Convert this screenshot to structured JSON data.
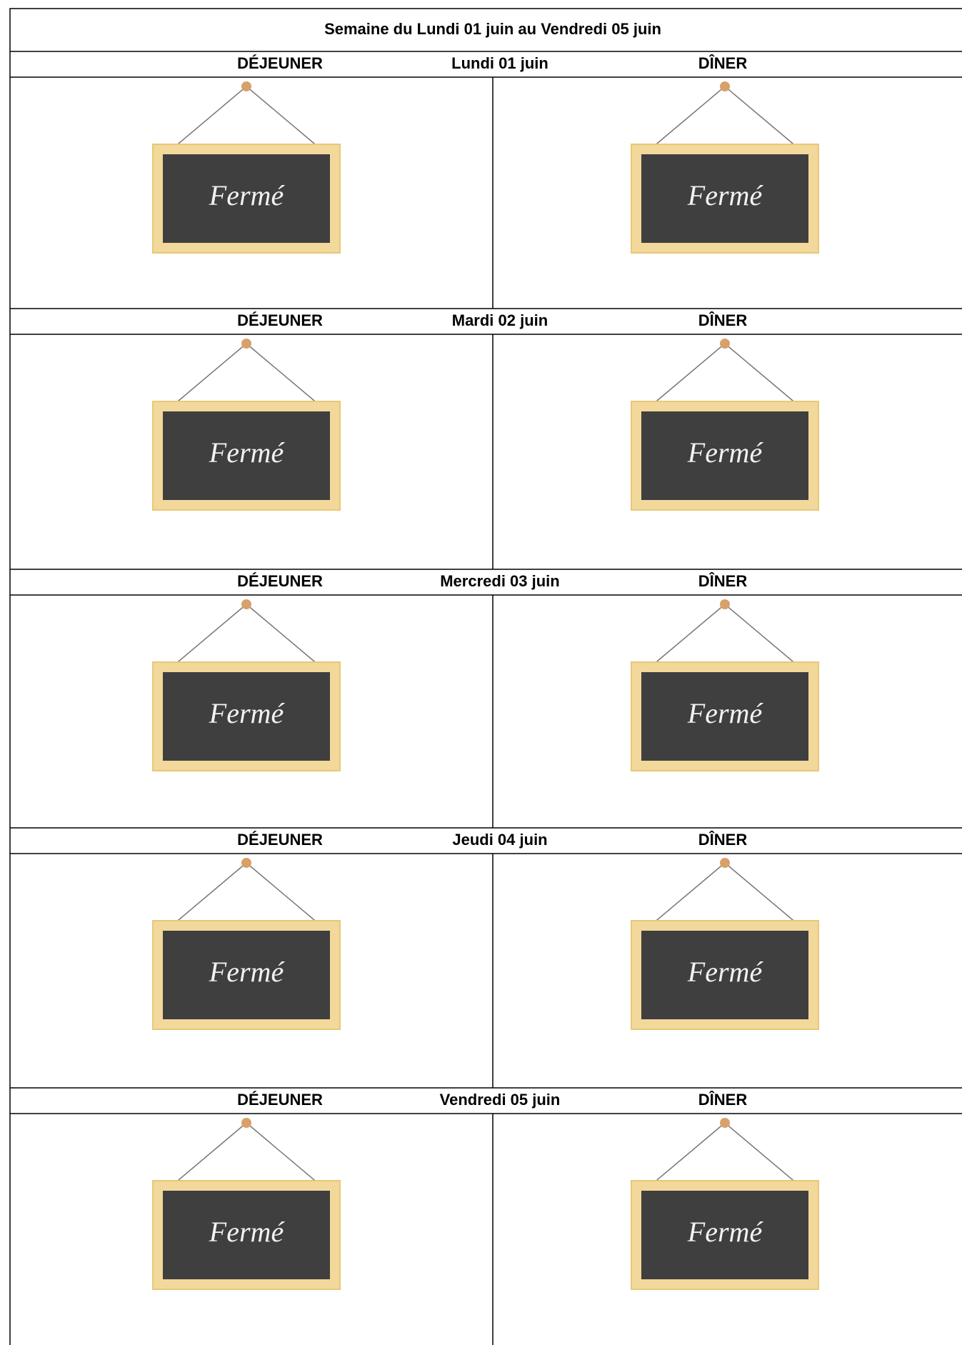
{
  "header": {
    "title": "Semaine du Lundi 01 juin au Vendredi 05 juin"
  },
  "days": [
    {
      "label": "Lundi 01 juin",
      "lunch": "DÉJEUNER",
      "dinner": "DÎNER",
      "lunch_sign": "Fermé",
      "dinner_sign": "Fermé"
    },
    {
      "label": "Mardi 02 juin",
      "lunch": "DÉJEUNER",
      "dinner": "DÎNER",
      "lunch_sign": "Fermé",
      "dinner_sign": "Fermé"
    },
    {
      "label": "Mercredi 03 juin",
      "lunch": "DÉJEUNER",
      "dinner": "DÎNER",
      "lunch_sign": "Fermé",
      "dinner_sign": "Fermé"
    },
    {
      "label": "Jeudi 04 juin",
      "lunch": "DÉJEUNER",
      "dinner": "DÎNER",
      "lunch_sign": "Fermé",
      "dinner_sign": "Fermé"
    },
    {
      "label": "Vendredi 05 juin",
      "lunch": "DÉJEUNER",
      "dinner": "DÎNER",
      "lunch_sign": "Fermé",
      "dinner_sign": "Fermé"
    }
  ]
}
